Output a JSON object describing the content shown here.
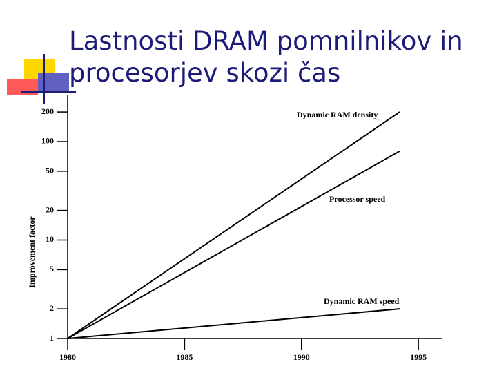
{
  "title": "Lastnosti DRAM pomnilnikov in procesorjev skozi čas",
  "chart_data": {
    "type": "line",
    "ylabel": "Improvement factor",
    "yscale": "log",
    "xlim": [
      1980,
      1996
    ],
    "xticks": [
      1980,
      1985,
      1990,
      1995
    ],
    "ylim": [
      1,
      300
    ],
    "yticks": [
      1,
      2,
      5,
      10,
      20,
      50,
      100,
      200
    ],
    "series": [
      {
        "name": "Dynamic RAM density",
        "color": "#000000",
        "x": [
          1980,
          1994.2
        ],
        "values": [
          1,
          200
        ]
      },
      {
        "name": "Processor speed",
        "color": "#000000",
        "x": [
          1980,
          1994.2
        ],
        "values": [
          1,
          80
        ]
      },
      {
        "name": "Dynamic RAM speed",
        "color": "#000000",
        "x": [
          1980,
          1994.2
        ],
        "values": [
          1,
          2
        ]
      }
    ]
  }
}
